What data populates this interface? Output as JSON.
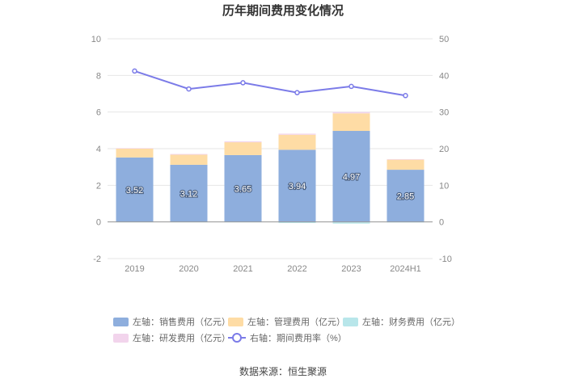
{
  "chart_data": {
    "type": "bar",
    "title": "历年期间费用变化情况",
    "categories": [
      "2019",
      "2020",
      "2021",
      "2022",
      "2023",
      "2024H1"
    ],
    "left_axis": {
      "min": -2,
      "max": 10,
      "ticks": [
        "-2",
        "0",
        "2",
        "4",
        "6",
        "8",
        "10"
      ]
    },
    "right_axis": {
      "min": -10,
      "max": 50,
      "ticks": [
        "-10",
        "0",
        "10",
        "20",
        "30",
        "40",
        "50"
      ]
    },
    "series": [
      {
        "name": "左轴：销售费用（亿元）",
        "color": "#8eaedd",
        "values": [
          3.52,
          3.12,
          3.65,
          3.94,
          4.97,
          2.85
        ],
        "labels": [
          "3.52",
          "3.12",
          "3.65",
          "3.94",
          "4.97",
          "2.85"
        ]
      },
      {
        "name": "左轴：管理费用（亿元）",
        "color": "#fedca5",
        "values": [
          0.48,
          0.55,
          0.7,
          0.82,
          0.96,
          0.55
        ]
      },
      {
        "name": "左轴：财务费用（亿元）",
        "color": "#b8e6ea",
        "values": [
          -0.02,
          -0.02,
          -0.02,
          -0.06,
          -0.09,
          -0.03
        ]
      },
      {
        "name": "左轴：研发费用（亿元）",
        "color": "#f2d4ec",
        "values": [
          0.03,
          0.04,
          0.05,
          0.06,
          0.07,
          0.03
        ]
      }
    ],
    "line": {
      "name": "右轴：期间费用率（%）",
      "color": "#7b7be8",
      "values": [
        41.2,
        36.3,
        38.0,
        35.3,
        37.0,
        34.5
      ]
    }
  },
  "source": "数据来源：恒生聚源"
}
